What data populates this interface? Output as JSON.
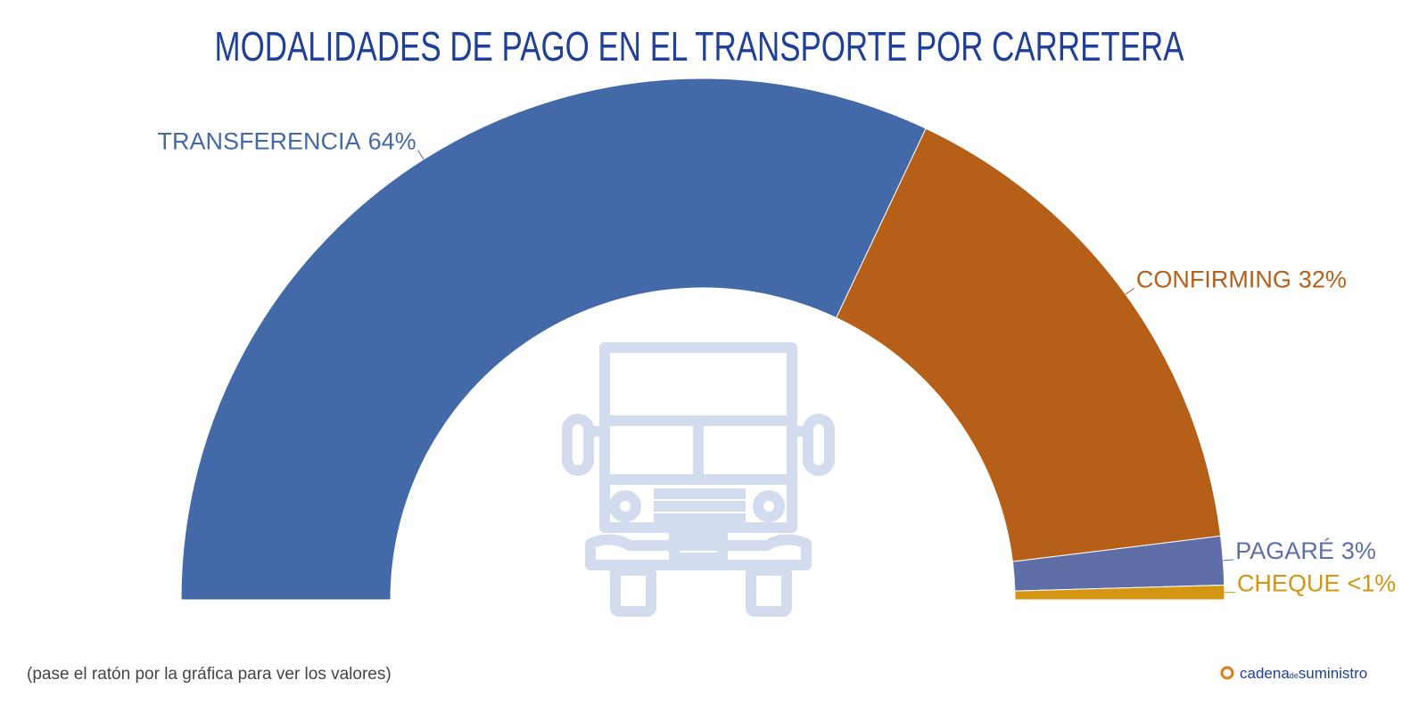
{
  "chart_data": {
    "type": "semi-donut",
    "title": "MODALIDADES DE PAGO EN EL TRANSPORTE POR CARRETERA",
    "categories": [
      "TRANSFERENCIA",
      "CONFIRMING",
      "PAGARÉ",
      "CHEQUE"
    ],
    "values": [
      64,
      32,
      3,
      0.9
    ],
    "value_labels": [
      "64%",
      "32%",
      "3%",
      "<1%"
    ],
    "colors": [
      "#4469a9",
      "#b55f18",
      "#5f6ea6",
      "#d49512"
    ],
    "footnote": "(pase el ratón por la gráfica para ver los valores)",
    "logo": [
      "cadena",
      "de",
      "suministro"
    ]
  }
}
